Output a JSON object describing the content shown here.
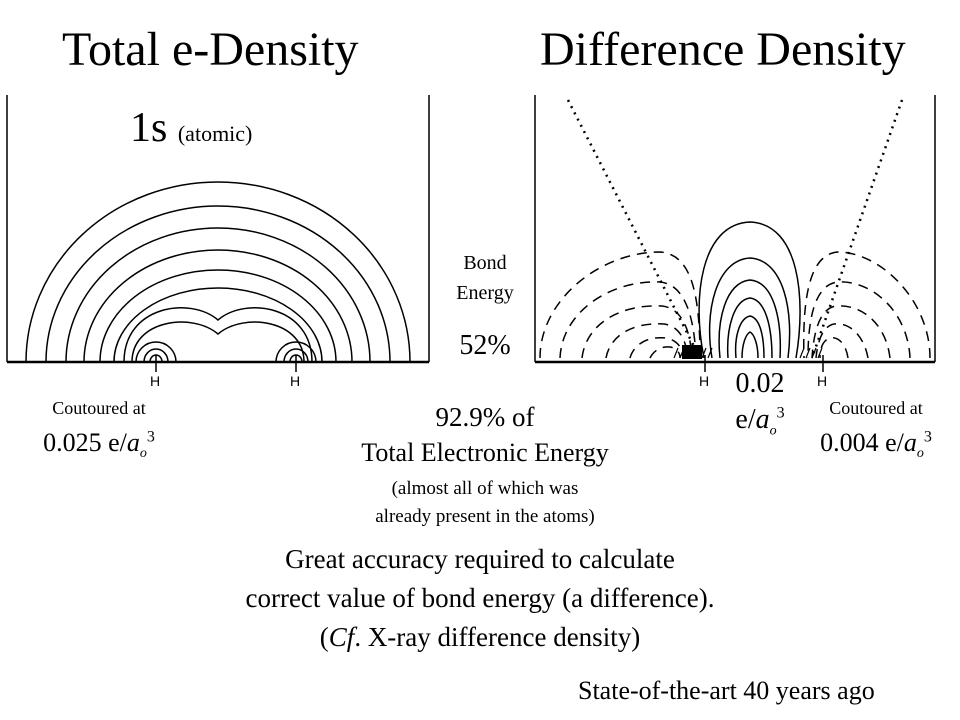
{
  "titles": {
    "left": "Total e-Density",
    "right": "Difference Density"
  },
  "left_panel": {
    "orbital": "1s",
    "orbital_note": "(atomic)",
    "atom_labels": [
      "H",
      "H"
    ],
    "contour_caption": "Coutoured at",
    "contour_value": "0.025 e/",
    "contour_unit": "a",
    "contour_sub": "o",
    "contour_sup": "3"
  },
  "bond_energy": {
    "label_line1": "Bond",
    "label_line2": "Energy",
    "value": "52%"
  },
  "right_panel": {
    "atom_labels": [
      "H",
      "H"
    ],
    "peak_value": "0.02",
    "peak_unit_prefix": "e/",
    "peak_unit": "a",
    "peak_sub": "o",
    "peak_sup": "3",
    "contour_caption": "Coutoured at",
    "contour_value": "0.004 e/",
    "contour_unit": "a",
    "contour_sub": "o",
    "contour_sup": "3"
  },
  "energy_note": {
    "line1": "92.9% of",
    "line2": "Total Electronic Energy",
    "line3": "(almost all of which was",
    "line4": "already present in the atoms)"
  },
  "conclusion": {
    "line1": "Great accuracy required to calculate",
    "line2": "correct value of bond energy (a difference).",
    "line3_open": "(",
    "line3_cf": "Cf",
    "line3_rest": ". X-ray difference density)"
  },
  "footer": "State-of-the-art 40 years ago"
}
